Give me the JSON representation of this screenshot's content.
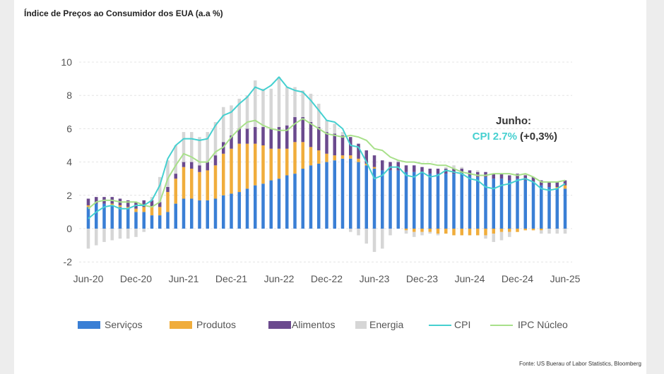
{
  "title": "Índice de Preços ao Consumidor dos EUA (a.a %)",
  "source": "Fonte: US Buerau of Labor Statistics, Bloomberg",
  "annotation": {
    "line1": "Junho:",
    "cpi_text": "CPI 2.7%",
    "change_text": "(+0,3%)"
  },
  "colors": {
    "servicos": "#3a7fd5",
    "produtos": "#f0ad3c",
    "alimentos": "#6b4a8e",
    "energia": "#d6d6d6",
    "cpi": "#45d0d0",
    "nucleo": "#a8e08a"
  },
  "chart_data": {
    "type": "bar",
    "stacked": true,
    "ylim": [
      -2,
      10
    ],
    "yticks": [
      -2,
      0,
      2,
      4,
      6,
      8,
      10
    ],
    "grid": true,
    "legend_position": "bottom",
    "xtick_labels": [
      "Jun-20",
      "Dec-20",
      "Jun-21",
      "Dec-21",
      "Jun-22",
      "Dec-22",
      "Jun-23",
      "Dec-23",
      "Jun-24",
      "Dec-24",
      "Jun-25"
    ],
    "categories": [
      "Jun-20",
      "Jul-20",
      "Aug-20",
      "Sep-20",
      "Oct-20",
      "Nov-20",
      "Dec-20",
      "Jan-21",
      "Feb-21",
      "Mar-21",
      "Apr-21",
      "May-21",
      "Jun-21",
      "Jul-21",
      "Aug-21",
      "Sep-21",
      "Oct-21",
      "Nov-21",
      "Dec-21",
      "Jan-22",
      "Feb-22",
      "Mar-22",
      "Apr-22",
      "May-22",
      "Jun-22",
      "Jul-22",
      "Aug-22",
      "Sep-22",
      "Oct-22",
      "Nov-22",
      "Dec-22",
      "Jan-23",
      "Feb-23",
      "Mar-23",
      "Apr-23",
      "May-23",
      "Jun-23",
      "Jul-23",
      "Aug-23",
      "Sep-23",
      "Oct-23",
      "Nov-23",
      "Dec-23",
      "Jan-24",
      "Feb-24",
      "Mar-24",
      "Apr-24",
      "May-24",
      "Jun-24",
      "Jul-24",
      "Aug-24",
      "Sep-24",
      "Oct-24",
      "Nov-24",
      "Dec-24",
      "Jan-25",
      "Feb-25",
      "Mar-25",
      "Apr-25",
      "May-25",
      "Jun-25"
    ],
    "series": [
      {
        "name": "Serviços",
        "values": [
          1.3,
          1.5,
          1.5,
          1.4,
          1.3,
          1.2,
          1.0,
          1.0,
          0.8,
          0.8,
          1.0,
          1.5,
          1.8,
          1.8,
          1.7,
          1.7,
          1.8,
          2.0,
          2.1,
          2.2,
          2.4,
          2.6,
          2.7,
          2.9,
          3.0,
          3.2,
          3.3,
          3.6,
          3.8,
          3.9,
          4.0,
          4.1,
          4.2,
          4.2,
          4.0,
          3.8,
          3.6,
          3.5,
          3.5,
          3.5,
          3.4,
          3.4,
          3.4,
          3.3,
          3.3,
          3.3,
          3.3,
          3.3,
          3.2,
          3.1,
          3.1,
          3.0,
          3.0,
          2.9,
          3.0,
          2.9,
          2.8,
          2.6,
          2.5,
          2.4,
          2.4
        ]
      },
      {
        "name": "Produtos",
        "values": [
          0.1,
          0.0,
          0.0,
          0.1,
          0.1,
          0.1,
          0.2,
          0.3,
          0.5,
          0.5,
          1.2,
          1.5,
          1.9,
          1.8,
          1.7,
          1.8,
          2.0,
          2.5,
          2.7,
          2.9,
          2.7,
          2.5,
          2.3,
          1.9,
          1.8,
          1.6,
          1.9,
          1.6,
          1.1,
          0.8,
          0.5,
          0.3,
          0.2,
          0.2,
          0.2,
          0.1,
          0.1,
          0.0,
          0.0,
          0.0,
          -0.1,
          -0.2,
          -0.2,
          -0.2,
          -0.3,
          -0.3,
          -0.4,
          -0.4,
          -0.4,
          -0.4,
          -0.4,
          -0.3,
          -0.2,
          -0.2,
          -0.2,
          -0.1,
          -0.1,
          -0.1,
          0.0,
          0.1,
          0.2
        ]
      },
      {
        "name": "Alimentos",
        "values": [
          0.4,
          0.4,
          0.4,
          0.4,
          0.4,
          0.4,
          0.4,
          0.4,
          0.4,
          0.3,
          0.3,
          0.3,
          0.3,
          0.4,
          0.4,
          0.5,
          0.6,
          0.7,
          0.8,
          0.9,
          0.9,
          1.0,
          1.1,
          1.2,
          1.3,
          1.4,
          1.5,
          1.5,
          1.5,
          1.4,
          1.3,
          1.3,
          1.2,
          1.1,
          0.9,
          0.8,
          0.7,
          0.6,
          0.5,
          0.5,
          0.4,
          0.4,
          0.3,
          0.3,
          0.3,
          0.3,
          0.3,
          0.3,
          0.3,
          0.3,
          0.3,
          0.3,
          0.3,
          0.3,
          0.3,
          0.3,
          0.3,
          0.3,
          0.3,
          0.3,
          0.3
        ]
      },
      {
        "name": "Energia",
        "values": [
          -1.2,
          -1.0,
          -0.8,
          -0.7,
          -0.6,
          -0.6,
          -0.5,
          -0.2,
          0.2,
          1.5,
          1.6,
          1.7,
          1.8,
          1.8,
          1.7,
          1.8,
          2.0,
          2.1,
          1.8,
          1.8,
          2.0,
          2.8,
          2.3,
          2.4,
          3.0,
          2.3,
          1.8,
          1.6,
          1.7,
          1.4,
          0.7,
          0.6,
          0.2,
          -0.2,
          -0.4,
          -0.9,
          -1.4,
          -1.2,
          -0.4,
          0.1,
          -0.2,
          -0.3,
          -0.2,
          -0.1,
          -0.1,
          0.1,
          0.2,
          0.1,
          0.0,
          0.1,
          -0.2,
          -0.5,
          -0.5,
          -0.3,
          0.0,
          0.1,
          0.0,
          -0.2,
          -0.3,
          -0.3,
          -0.3
        ]
      },
      {
        "name": "CPI",
        "type": "line",
        "values": [
          0.6,
          1.0,
          1.3,
          1.4,
          1.2,
          1.2,
          1.4,
          1.4,
          1.7,
          2.6,
          4.2,
          5.0,
          5.4,
          5.4,
          5.3,
          5.4,
          6.2,
          6.8,
          7.0,
          7.5,
          7.9,
          8.5,
          8.3,
          8.6,
          9.1,
          8.5,
          8.3,
          8.2,
          7.7,
          7.1,
          6.5,
          6.4,
          6.0,
          5.0,
          4.9,
          4.0,
          3.0,
          3.2,
          3.7,
          3.7,
          3.2,
          3.1,
          3.4,
          3.1,
          3.2,
          3.5,
          3.4,
          3.3,
          3.0,
          2.9,
          2.5,
          2.4,
          2.6,
          2.7,
          2.9,
          3.0,
          2.8,
          2.4,
          2.3,
          2.4,
          2.7
        ]
      },
      {
        "name": "IPC Núcleo",
        "type": "line",
        "values": [
          1.2,
          1.6,
          1.7,
          1.7,
          1.6,
          1.6,
          1.6,
          1.4,
          1.3,
          1.6,
          3.0,
          3.8,
          4.5,
          4.3,
          4.0,
          4.0,
          4.6,
          4.9,
          5.5,
          6.0,
          6.4,
          6.5,
          6.2,
          6.0,
          5.9,
          5.9,
          6.3,
          6.6,
          6.3,
          6.0,
          5.7,
          5.6,
          5.5,
          5.6,
          5.5,
          5.3,
          4.8,
          4.7,
          4.3,
          4.1,
          4.0,
          4.0,
          3.9,
          3.9,
          3.8,
          3.8,
          3.6,
          3.4,
          3.3,
          3.2,
          3.2,
          3.3,
          3.3,
          3.3,
          3.2,
          3.3,
          3.1,
          2.8,
          2.8,
          2.8,
          2.9
        ]
      }
    ]
  }
}
